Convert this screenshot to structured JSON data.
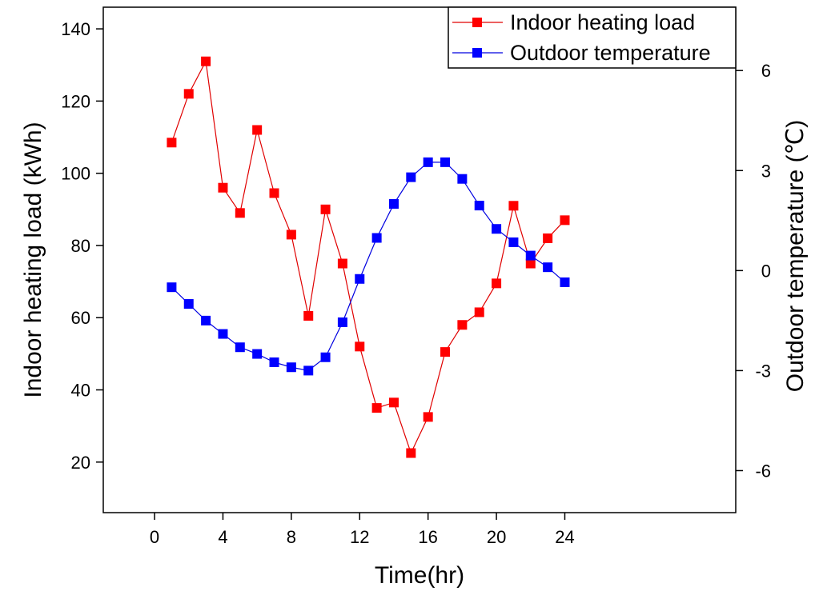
{
  "chart_data": {
    "type": "line",
    "xlabel": "Time(hr)",
    "ylabel_left": "Indoor heating load (kWh)",
    "ylabel_right": "Outdoor temperature (℃)",
    "xlim": [
      -3,
      34
    ],
    "xticks": [
      0,
      4,
      8,
      12,
      16,
      20,
      24
    ],
    "ylim_left": [
      6,
      146
    ],
    "yticks_left": [
      20,
      40,
      60,
      80,
      100,
      120,
      140
    ],
    "ylim_right": [
      -7.26,
      7.9
    ],
    "yticks_right": [
      -6,
      -3,
      0,
      3,
      6
    ],
    "grid": false,
    "legend_position": "top-right",
    "x": [
      1,
      2,
      3,
      4,
      5,
      6,
      7,
      8,
      9,
      10,
      11,
      12,
      13,
      14,
      15,
      16,
      17,
      18,
      19,
      20,
      21,
      22,
      23,
      24
    ],
    "series": [
      {
        "name": "Indoor heating load",
        "axis": "left",
        "color": "#ff0000",
        "line_color": "#e00000",
        "values": [
          108.5,
          122,
          131,
          96,
          89,
          112,
          94.5,
          83,
          60.5,
          90,
          75,
          52,
          35,
          36.5,
          22.5,
          32.5,
          50.5,
          58,
          61.5,
          69.5,
          91,
          75,
          82,
          87
        ]
      },
      {
        "name": "Outdoor temperature",
        "axis": "right",
        "color": "#0000ff",
        "line_color": "#0000e0",
        "values": [
          -0.5,
          -1.0,
          -1.5,
          -1.9,
          -2.3,
          -2.5,
          -2.75,
          -2.9,
          -3.0,
          -2.6,
          -1.55,
          -0.25,
          0.98,
          2.0,
          2.8,
          3.25,
          3.25,
          2.75,
          1.95,
          1.25,
          0.85,
          0.45,
          0.1,
          -0.35
        ]
      }
    ]
  }
}
